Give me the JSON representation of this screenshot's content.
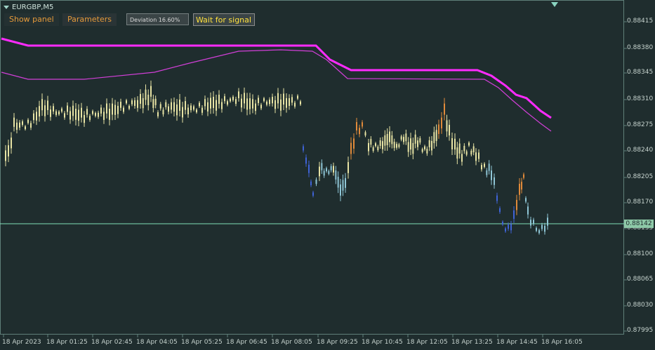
{
  "symbol": "EURGBP,M5",
  "toolbar": {
    "show_panel_label": "Show panel",
    "parameters_label": "Parameters",
    "deviation_label": "Deviation 16.60%",
    "signal_label": "Wait for signal"
  },
  "current_price": "0.88142",
  "colors": {
    "background": "#1f2d2e",
    "envelope_upper": "#ff2bff",
    "envelope_lower": "#d23fd8",
    "price_line": "#7fe0b6",
    "signal_text": "#ffe13d",
    "button_text": "#e59a3a"
  },
  "y_axis_ticks": [
    "0.88415",
    "0.88380",
    "0.88345",
    "0.88310",
    "0.88275",
    "0.88240",
    "0.88205",
    "0.88170",
    "0.88135",
    "0.88100",
    "0.88065",
    "0.88030",
    "0.87995"
  ],
  "x_axis_ticks": [
    "18 Apr 2023",
    "18 Apr 01:25",
    "18 Apr 02:45",
    "18 Apr 04:05",
    "18 Apr 05:25",
    "18 Apr 06:45",
    "18 Apr 08:05",
    "18 Apr 09:25",
    "18 Apr 10:45",
    "18 Apr 12:05",
    "18 Apr 13:25",
    "18 Apr 14:45",
    "18 Apr 16:05"
  ]
}
